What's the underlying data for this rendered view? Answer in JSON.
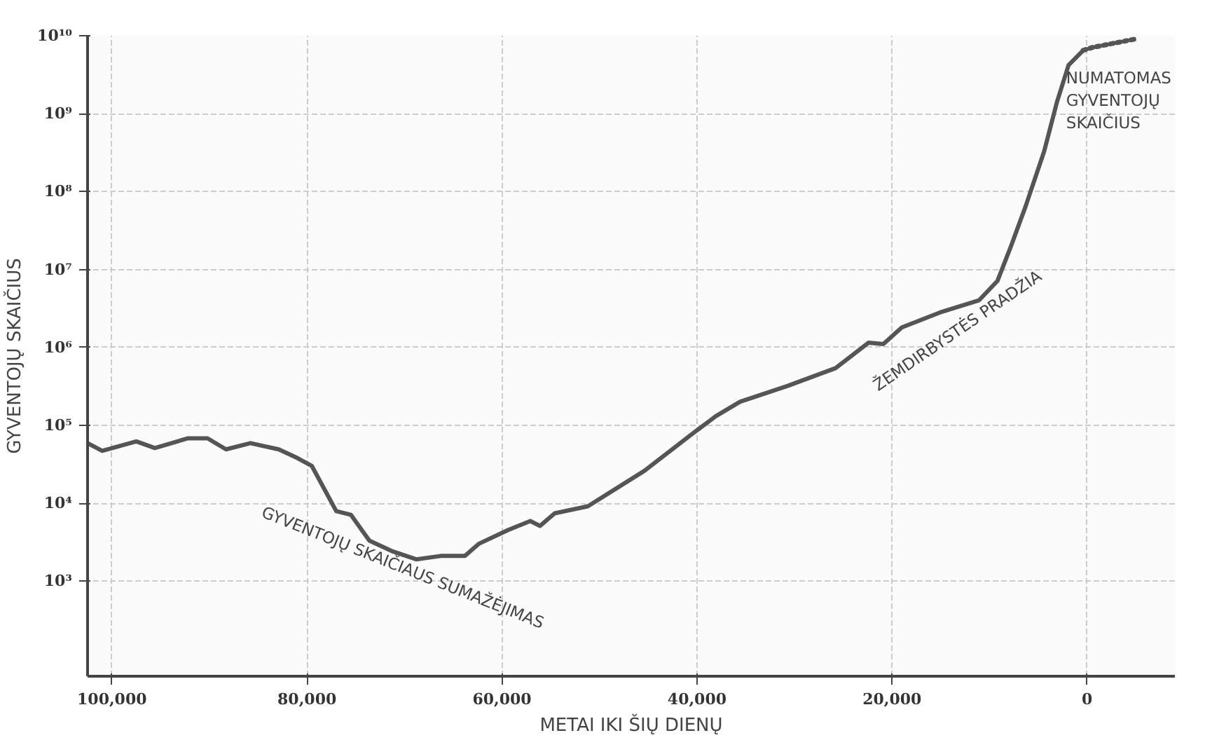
{
  "chart_data": {
    "type": "line",
    "xlabel": "METAI IKI ŠIŲ DIENŲ",
    "ylabel": "GYVENTOJŲ SKAIČIUS",
    "log": "y",
    "grid": true,
    "xlim": [
      102500,
      -9000
    ],
    "ylim": [
      60,
      10000000000
    ],
    "xticks": [
      {
        "value": 100000,
        "label": "100,000"
      },
      {
        "value": 80000,
        "label": "80,000"
      },
      {
        "value": 60000,
        "label": "60,000"
      },
      {
        "value": 40000,
        "label": "40,000"
      },
      {
        "value": 20000,
        "label": "20,000"
      },
      0
    ],
    "yticks": [
      {
        "value": 1000,
        "label": "10³"
      },
      {
        "value": 10000,
        "label": "10⁴"
      },
      {
        "value": 100000,
        "label": "10⁵"
      },
      {
        "value": 1000000,
        "label": "10⁶"
      },
      {
        "value": 10000000,
        "label": "10⁷"
      },
      {
        "value": 100000000,
        "label": "10⁸"
      },
      {
        "value": 1000000000,
        "label": "10⁹"
      },
      {
        "value": 10000000000,
        "label": "10¹⁰"
      }
    ],
    "series": [
      {
        "color": "#555555",
        "line_style": "solid",
        "x": [
          102500,
          101000,
          97500,
          95600,
          92200,
          90200,
          88300,
          85800,
          82900,
          81000,
          79500,
          77000,
          75500,
          73600,
          71200,
          68800,
          66300,
          63800,
          62400,
          59400,
          57100,
          56100,
          54600,
          51200,
          45400,
          40400,
          38100,
          35600,
          30700,
          25800,
          22400,
          20900,
          19000,
          15100,
          11100,
          9200,
          7800,
          6300,
          4400,
          3100,
          1900,
          400
        ],
        "values": [
          59000,
          47000,
          62000,
          51000,
          68000,
          68000,
          49000,
          59000,
          49000,
          38000,
          30000,
          7900,
          7100,
          3300,
          2400,
          1900,
          2100,
          2100,
          3000,
          4500,
          5900,
          5100,
          7400,
          9100,
          26000,
          79000,
          130000,
          200000,
          320000,
          540000,
          1150000,
          1100000,
          1800000,
          2800000,
          4000000,
          7100000,
          20000000,
          65000000,
          330000000,
          1400000000,
          4200000000,
          6500000000
        ]
      },
      {
        "color": "#555555",
        "line_style": "dotted",
        "x": [
          400,
          -600,
          -5000
        ],
        "values": [
          6500000000,
          7100000000,
          9100000000
        ]
      }
    ],
    "annotations": [
      "GYVENTOJŲ SKAIČIAUS SUMAŽĖJIMAS",
      "ŽEMDIRBYSTĖS PRADŽIA",
      "NUMATOMAS GYVENTOJŲ SKAIČIUS"
    ]
  }
}
